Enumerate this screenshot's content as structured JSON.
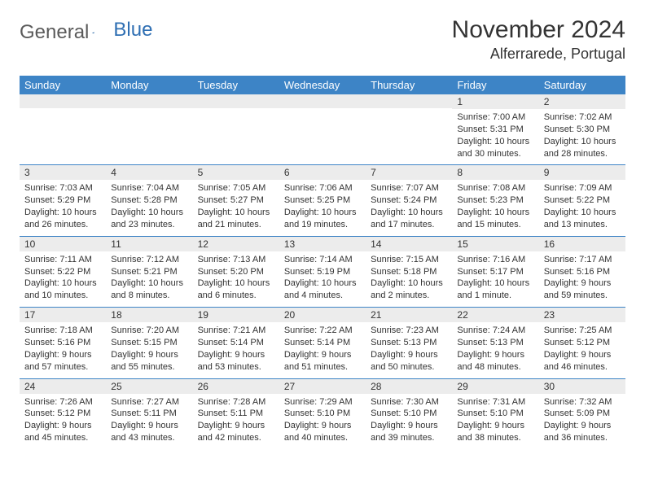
{
  "brand": {
    "word1": "General",
    "word2": "Blue"
  },
  "title": "November 2024",
  "location": "Alferrarede, Portugal",
  "colors": {
    "header_bg": "#3d84c6",
    "header_fg": "#ffffff",
    "daynum_bg": "#ececec",
    "row_border": "#3d84c6",
    "text": "#333333",
    "logo_gray": "#5a5a5a",
    "logo_blue": "#2f6fb3"
  },
  "weekdays": [
    "Sunday",
    "Monday",
    "Tuesday",
    "Wednesday",
    "Thursday",
    "Friday",
    "Saturday"
  ],
  "weeks": [
    [
      null,
      null,
      null,
      null,
      null,
      {
        "d": "1",
        "sr": "Sunrise: 7:00 AM",
        "ss": "Sunset: 5:31 PM",
        "dl": "Daylight: 10 hours and 30 minutes."
      },
      {
        "d": "2",
        "sr": "Sunrise: 7:02 AM",
        "ss": "Sunset: 5:30 PM",
        "dl": "Daylight: 10 hours and 28 minutes."
      }
    ],
    [
      {
        "d": "3",
        "sr": "Sunrise: 7:03 AM",
        "ss": "Sunset: 5:29 PM",
        "dl": "Daylight: 10 hours and 26 minutes."
      },
      {
        "d": "4",
        "sr": "Sunrise: 7:04 AM",
        "ss": "Sunset: 5:28 PM",
        "dl": "Daylight: 10 hours and 23 minutes."
      },
      {
        "d": "5",
        "sr": "Sunrise: 7:05 AM",
        "ss": "Sunset: 5:27 PM",
        "dl": "Daylight: 10 hours and 21 minutes."
      },
      {
        "d": "6",
        "sr": "Sunrise: 7:06 AM",
        "ss": "Sunset: 5:25 PM",
        "dl": "Daylight: 10 hours and 19 minutes."
      },
      {
        "d": "7",
        "sr": "Sunrise: 7:07 AM",
        "ss": "Sunset: 5:24 PM",
        "dl": "Daylight: 10 hours and 17 minutes."
      },
      {
        "d": "8",
        "sr": "Sunrise: 7:08 AM",
        "ss": "Sunset: 5:23 PM",
        "dl": "Daylight: 10 hours and 15 minutes."
      },
      {
        "d": "9",
        "sr": "Sunrise: 7:09 AM",
        "ss": "Sunset: 5:22 PM",
        "dl": "Daylight: 10 hours and 13 minutes."
      }
    ],
    [
      {
        "d": "10",
        "sr": "Sunrise: 7:11 AM",
        "ss": "Sunset: 5:22 PM",
        "dl": "Daylight: 10 hours and 10 minutes."
      },
      {
        "d": "11",
        "sr": "Sunrise: 7:12 AM",
        "ss": "Sunset: 5:21 PM",
        "dl": "Daylight: 10 hours and 8 minutes."
      },
      {
        "d": "12",
        "sr": "Sunrise: 7:13 AM",
        "ss": "Sunset: 5:20 PM",
        "dl": "Daylight: 10 hours and 6 minutes."
      },
      {
        "d": "13",
        "sr": "Sunrise: 7:14 AM",
        "ss": "Sunset: 5:19 PM",
        "dl": "Daylight: 10 hours and 4 minutes."
      },
      {
        "d": "14",
        "sr": "Sunrise: 7:15 AM",
        "ss": "Sunset: 5:18 PM",
        "dl": "Daylight: 10 hours and 2 minutes."
      },
      {
        "d": "15",
        "sr": "Sunrise: 7:16 AM",
        "ss": "Sunset: 5:17 PM",
        "dl": "Daylight: 10 hours and 1 minute."
      },
      {
        "d": "16",
        "sr": "Sunrise: 7:17 AM",
        "ss": "Sunset: 5:16 PM",
        "dl": "Daylight: 9 hours and 59 minutes."
      }
    ],
    [
      {
        "d": "17",
        "sr": "Sunrise: 7:18 AM",
        "ss": "Sunset: 5:16 PM",
        "dl": "Daylight: 9 hours and 57 minutes."
      },
      {
        "d": "18",
        "sr": "Sunrise: 7:20 AM",
        "ss": "Sunset: 5:15 PM",
        "dl": "Daylight: 9 hours and 55 minutes."
      },
      {
        "d": "19",
        "sr": "Sunrise: 7:21 AM",
        "ss": "Sunset: 5:14 PM",
        "dl": "Daylight: 9 hours and 53 minutes."
      },
      {
        "d": "20",
        "sr": "Sunrise: 7:22 AM",
        "ss": "Sunset: 5:14 PM",
        "dl": "Daylight: 9 hours and 51 minutes."
      },
      {
        "d": "21",
        "sr": "Sunrise: 7:23 AM",
        "ss": "Sunset: 5:13 PM",
        "dl": "Daylight: 9 hours and 50 minutes."
      },
      {
        "d": "22",
        "sr": "Sunrise: 7:24 AM",
        "ss": "Sunset: 5:13 PM",
        "dl": "Daylight: 9 hours and 48 minutes."
      },
      {
        "d": "23",
        "sr": "Sunrise: 7:25 AM",
        "ss": "Sunset: 5:12 PM",
        "dl": "Daylight: 9 hours and 46 minutes."
      }
    ],
    [
      {
        "d": "24",
        "sr": "Sunrise: 7:26 AM",
        "ss": "Sunset: 5:12 PM",
        "dl": "Daylight: 9 hours and 45 minutes."
      },
      {
        "d": "25",
        "sr": "Sunrise: 7:27 AM",
        "ss": "Sunset: 5:11 PM",
        "dl": "Daylight: 9 hours and 43 minutes."
      },
      {
        "d": "26",
        "sr": "Sunrise: 7:28 AM",
        "ss": "Sunset: 5:11 PM",
        "dl": "Daylight: 9 hours and 42 minutes."
      },
      {
        "d": "27",
        "sr": "Sunrise: 7:29 AM",
        "ss": "Sunset: 5:10 PM",
        "dl": "Daylight: 9 hours and 40 minutes."
      },
      {
        "d": "28",
        "sr": "Sunrise: 7:30 AM",
        "ss": "Sunset: 5:10 PM",
        "dl": "Daylight: 9 hours and 39 minutes."
      },
      {
        "d": "29",
        "sr": "Sunrise: 7:31 AM",
        "ss": "Sunset: 5:10 PM",
        "dl": "Daylight: 9 hours and 38 minutes."
      },
      {
        "d": "30",
        "sr": "Sunrise: 7:32 AM",
        "ss": "Sunset: 5:09 PM",
        "dl": "Daylight: 9 hours and 36 minutes."
      }
    ]
  ]
}
